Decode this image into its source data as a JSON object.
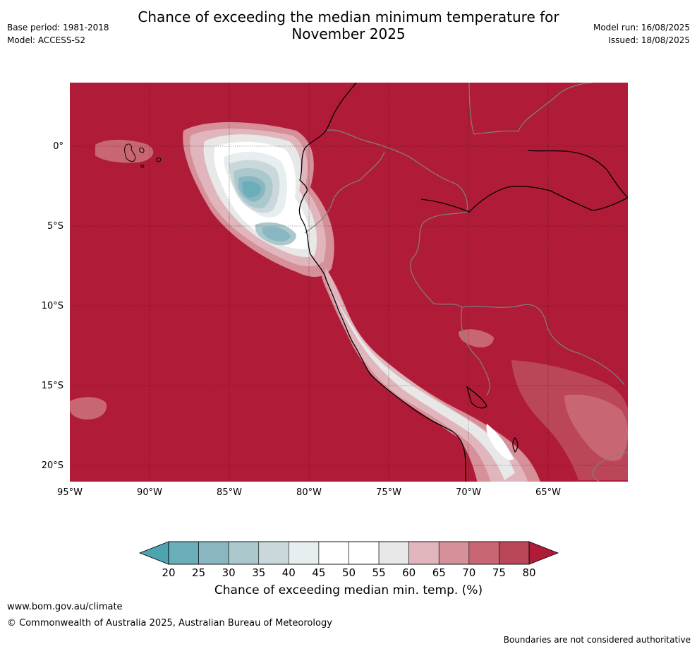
{
  "header": {
    "title_line1": "Chance of exceeding the median minimum temperature for",
    "title_line2": "November 2025",
    "base_period": "Base period: 1981-2018",
    "model": "Model: ACCESS-S2",
    "model_run": "Model run: 16/08/2025",
    "issued": "Issued: 18/08/2025"
  },
  "map": {
    "lon_ticks": [
      "95°W",
      "90°W",
      "85°W",
      "80°W",
      "75°W",
      "70°W",
      "65°W"
    ],
    "lat_ticks": [
      "0°",
      "5°S",
      "10°S",
      "15°S",
      "20°S"
    ],
    "background_color": "#b01c38",
    "coastline_color": "#000000",
    "border_color": "#808080"
  },
  "colorbar": {
    "title": "Chance of exceeding median min. temp. (%)",
    "labels": [
      "20",
      "25",
      "30",
      "35",
      "40",
      "45",
      "50",
      "55",
      "60",
      "65",
      "70",
      "75",
      "80"
    ],
    "colors": [
      "#6aaeb9",
      "#89b7c1",
      "#abc8cd",
      "#cad8dc",
      "#e7eef0",
      "#ffffff",
      "#ffffff",
      "#e8e8e8",
      "#e0b6bc",
      "#d6909a",
      "#c96674",
      "#bb4657"
    ],
    "low_extend_color": "#4da3ae",
    "high_extend_color": "#b01c38"
  },
  "footer": {
    "url": "www.bom.gov.au/climate",
    "copyright": "© Commonwealth of Australia 2025, Australian Bureau of Meteorology",
    "note": "Boundaries are not considered authoritative"
  }
}
